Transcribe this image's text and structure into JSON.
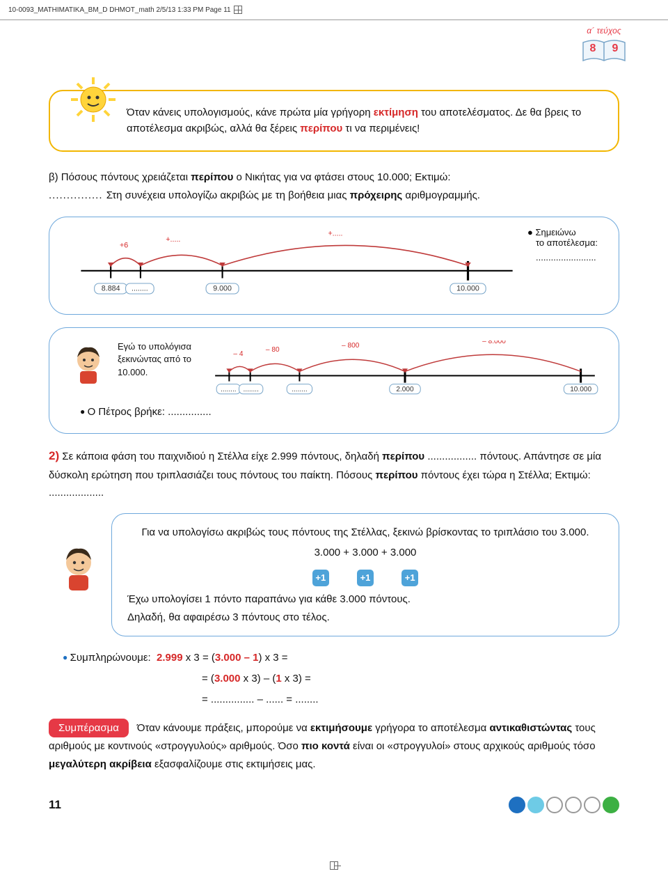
{
  "header": {
    "file_tag": "10-0093_MATHIMATIKA_BM_D DHMOT_math  2/5/13  1:33 PM  Page 11"
  },
  "badge": {
    "tome_label": "α´ τεύχος",
    "page_left": "8",
    "page_right": "9",
    "book_stroke": "#7aa6c9",
    "book_fill": "#eef5fb"
  },
  "tip": {
    "text_a": "Όταν κάνεις υπολογισμούς, κάνε πρώτα μία γρήγορη ",
    "bold1": "εκτίμηση",
    "text_b": " του αποτελέσματος. Δε θα βρεις το αποτέλεσμα ακριβώς, αλλά θα ξέρεις ",
    "bold2": "περίπου",
    "text_c": " τι να περιμένεις!",
    "border": "#f2b600"
  },
  "question_b": {
    "prefix": "β) Πόσους πόντους χρειάζεται ",
    "bold1": "περίπου",
    "mid": " ο Νικήτας για να φτάσει στους 10.000; Εκτιμώ:",
    "line2_pre": " Στη συνέχεια υπολογίζω ακριβώς με τη βοήθεια μιας ",
    "bold2": "πρόχειρης",
    "line2_post": " αριθμογραμμής."
  },
  "numberline1": {
    "border": "#6ea8dc",
    "line_color": "#000000",
    "arc_color": "#bf3a3a",
    "label_box_stroke": "#7aa6c9",
    "start_label": "8.884",
    "plus6_label": "+6",
    "plus_blank_label": "+.....",
    "big_plus_label": "+.....",
    "t1_blank": "........",
    "t2": "9.000",
    "t3": "10.000",
    "note_l1": "Σημειώνω",
    "note_l2": "το αποτέλεσμα:",
    "note_dots": "........................"
  },
  "numberline2": {
    "border": "#6ea8dc",
    "speech": "Εγώ το υπολόγισα ξεκινώντας από το 10.000.",
    "minus4": "– 4",
    "minus80": "– 80",
    "minus800": "– 800",
    "minus8000": "– 8.000",
    "blank": "........",
    "v2000": "2.000",
    "v10000": "10.000",
    "petros": "Ο Πέτρος βρήκε: ..............."
  },
  "ex2": {
    "num": "2)",
    "l1a": " Σε κάποια φάση του παιχνιδιού η Στέλλα είχε 2.999 πόντους, δηλαδή ",
    "l1bold": "περίπου",
    "l2": " ................. πόντους. Απάντησε σε μία δύσκολη ερώτηση που τριπλασιάζει τους πόντους του παίκτη. Πόσους ",
    "l2bold": "περίπου",
    "l3": " πόντους έχει τώρα η Στέλλα; Εκτιμώ: ..................."
  },
  "bubble": {
    "line1": "Για να υπολογίσω ακριβώς τους πόντους της Στέλλας, ξεκινώ βρίσκοντας το τριπλάσιο του 3.000.",
    "sum": "3.000 + 3.000 + 3.000",
    "plus1": "+1",
    "line3": "Έχω υπολογίσει 1 πόντο παραπάνω για κάθε 3.000 πόντους.",
    "line4": "Δηλαδή, θα αφαιρέσω 3 πόντους στο τέλος."
  },
  "equations": {
    "leader": "Συμπληρώνουμε:",
    "e1a": "2.999",
    "e1b": " x 3 = (",
    "e1c": "3.000 – 1",
    "e1d": ") x 3 =",
    "e2": "= (",
    "e2b": "3.000",
    "e2c": " x 3) – (",
    "e2d": "1",
    "e2e": " x 3) =",
    "e3": "= ............... – ...... = ........"
  },
  "conclusion": {
    "badge": "Συμπέρασμα",
    "badge_bg": "#e63946",
    "t1": "Όταν κάνουμε πράξεις, μπορούμε να ",
    "b1": "εκτιμήσουμε",
    "t2": " γρήγορα το αποτέλεσμα ",
    "b2": "αντικαθιστώντας",
    "t3": " τους αριθμούς με κοντινούς «στρογγυλούς» αριθμούς. Όσο ",
    "b3": "πιο κοντά",
    "t4": " είναι οι «στρογγυλοί» στους αρχικούς αριθμούς τόσο ",
    "b4": "μεγαλύτερη ακρίβεια",
    "t5": " εξασφαλίζουμε στις εκτιμήσεις μας."
  },
  "footer": {
    "page": "11",
    "beads": [
      {
        "fill": "#1e70c1",
        "stroke": "#1e70c1"
      },
      {
        "fill": "#6ecbe6",
        "stroke": "#6ecbe6"
      },
      {
        "fill": "#ffffff",
        "stroke": "#999"
      },
      {
        "fill": "#ffffff",
        "stroke": "#999"
      },
      {
        "fill": "#ffffff",
        "stroke": "#999"
      },
      {
        "fill": "#3cb043",
        "stroke": "#3cb043"
      }
    ]
  }
}
